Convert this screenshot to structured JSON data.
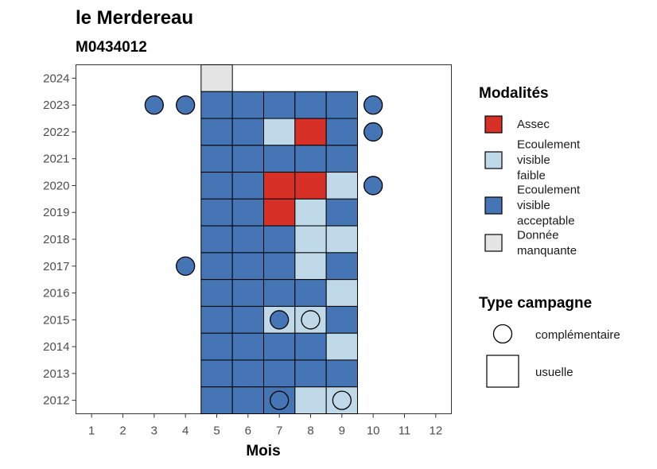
{
  "chart_data": {
    "type": "heatmap",
    "title": "le Merdereau",
    "subtitle": "M0434012",
    "xlabel": "Mois",
    "ylabel": "",
    "x_ticks": [
      1,
      2,
      3,
      4,
      5,
      6,
      7,
      8,
      9,
      10,
      11,
      12
    ],
    "y_ticks": [
      2012,
      2013,
      2014,
      2015,
      2016,
      2017,
      2018,
      2019,
      2020,
      2021,
      2022,
      2023,
      2024
    ],
    "xlim": [
      0.5,
      12.5
    ],
    "ylim": [
      2011.5,
      2024.5
    ],
    "grid": false,
    "modalites": {
      "title": "Modalités",
      "items": [
        {
          "key": "assec",
          "lines": [
            "Assec"
          ],
          "color": "#d73027"
        },
        {
          "key": "faible",
          "lines": [
            "Ecoulement",
            "visible",
            "faible"
          ],
          "color": "#c0d9e8"
        },
        {
          "key": "acceptable",
          "lines": [
            "Ecoulement",
            "visible",
            "acceptable"
          ],
          "color": "#4575b4"
        },
        {
          "key": "manquante",
          "lines": [
            "Donnée",
            "manquante"
          ],
          "color": "#e5e5e5"
        }
      ]
    },
    "campagne": {
      "title": "Type campagne",
      "items": [
        {
          "key": "complementaire",
          "label": "complémentaire"
        },
        {
          "key": "usuelle",
          "label": "usuelle"
        }
      ]
    },
    "usuelle": [
      {
        "year": 2024,
        "values": {
          "5": "manquante"
        }
      },
      {
        "year": 2023,
        "values": {
          "5": "acceptable",
          "6": "acceptable",
          "7": "acceptable",
          "8": "acceptable",
          "9": "acceptable"
        }
      },
      {
        "year": 2022,
        "values": {
          "5": "acceptable",
          "6": "acceptable",
          "7": "faible",
          "8": "assec",
          "9": "acceptable"
        }
      },
      {
        "year": 2021,
        "values": {
          "5": "acceptable",
          "6": "acceptable",
          "7": "acceptable",
          "8": "acceptable",
          "9": "acceptable"
        }
      },
      {
        "year": 2020,
        "values": {
          "5": "acceptable",
          "6": "acceptable",
          "7": "assec",
          "8": "assec",
          "9": "faible"
        }
      },
      {
        "year": 2019,
        "values": {
          "5": "acceptable",
          "6": "acceptable",
          "7": "assec",
          "8": "faible",
          "9": "acceptable"
        }
      },
      {
        "year": 2018,
        "values": {
          "5": "acceptable",
          "6": "acceptable",
          "7": "acceptable",
          "8": "faible",
          "9": "faible"
        }
      },
      {
        "year": 2017,
        "values": {
          "5": "acceptable",
          "6": "acceptable",
          "7": "acceptable",
          "8": "faible",
          "9": "acceptable"
        }
      },
      {
        "year": 2016,
        "values": {
          "5": "acceptable",
          "6": "acceptable",
          "7": "acceptable",
          "8": "acceptable",
          "9": "faible"
        }
      },
      {
        "year": 2015,
        "values": {
          "5": "acceptable",
          "6": "acceptable",
          "7": "faible",
          "8": "faible",
          "9": "acceptable"
        }
      },
      {
        "year": 2014,
        "values": {
          "5": "acceptable",
          "6": "acceptable",
          "7": "acceptable",
          "8": "acceptable",
          "9": "faible"
        }
      },
      {
        "year": 2013,
        "values": {
          "5": "acceptable",
          "6": "acceptable",
          "7": "acceptable",
          "8": "acceptable",
          "9": "acceptable"
        }
      },
      {
        "year": 2012,
        "values": {
          "5": "acceptable",
          "6": "acceptable",
          "7": "acceptable",
          "8": "faible",
          "9": "faible"
        }
      }
    ],
    "complementaire": [
      {
        "year": 2023,
        "month": 3,
        "value": "acceptable"
      },
      {
        "year": 2023,
        "month": 4,
        "value": "acceptable"
      },
      {
        "year": 2023,
        "month": 10,
        "value": "acceptable"
      },
      {
        "year": 2022,
        "month": 10,
        "value": "acceptable"
      },
      {
        "year": 2020,
        "month": 10,
        "value": "acceptable"
      },
      {
        "year": 2017,
        "month": 4,
        "value": "acceptable"
      },
      {
        "year": 2015,
        "month": 7,
        "value": "acceptable"
      },
      {
        "year": 2015,
        "month": 8,
        "value": "faible"
      },
      {
        "year": 2012,
        "month": 7,
        "value": "acceptable"
      },
      {
        "year": 2012,
        "month": 9,
        "value": "faible"
      }
    ]
  }
}
